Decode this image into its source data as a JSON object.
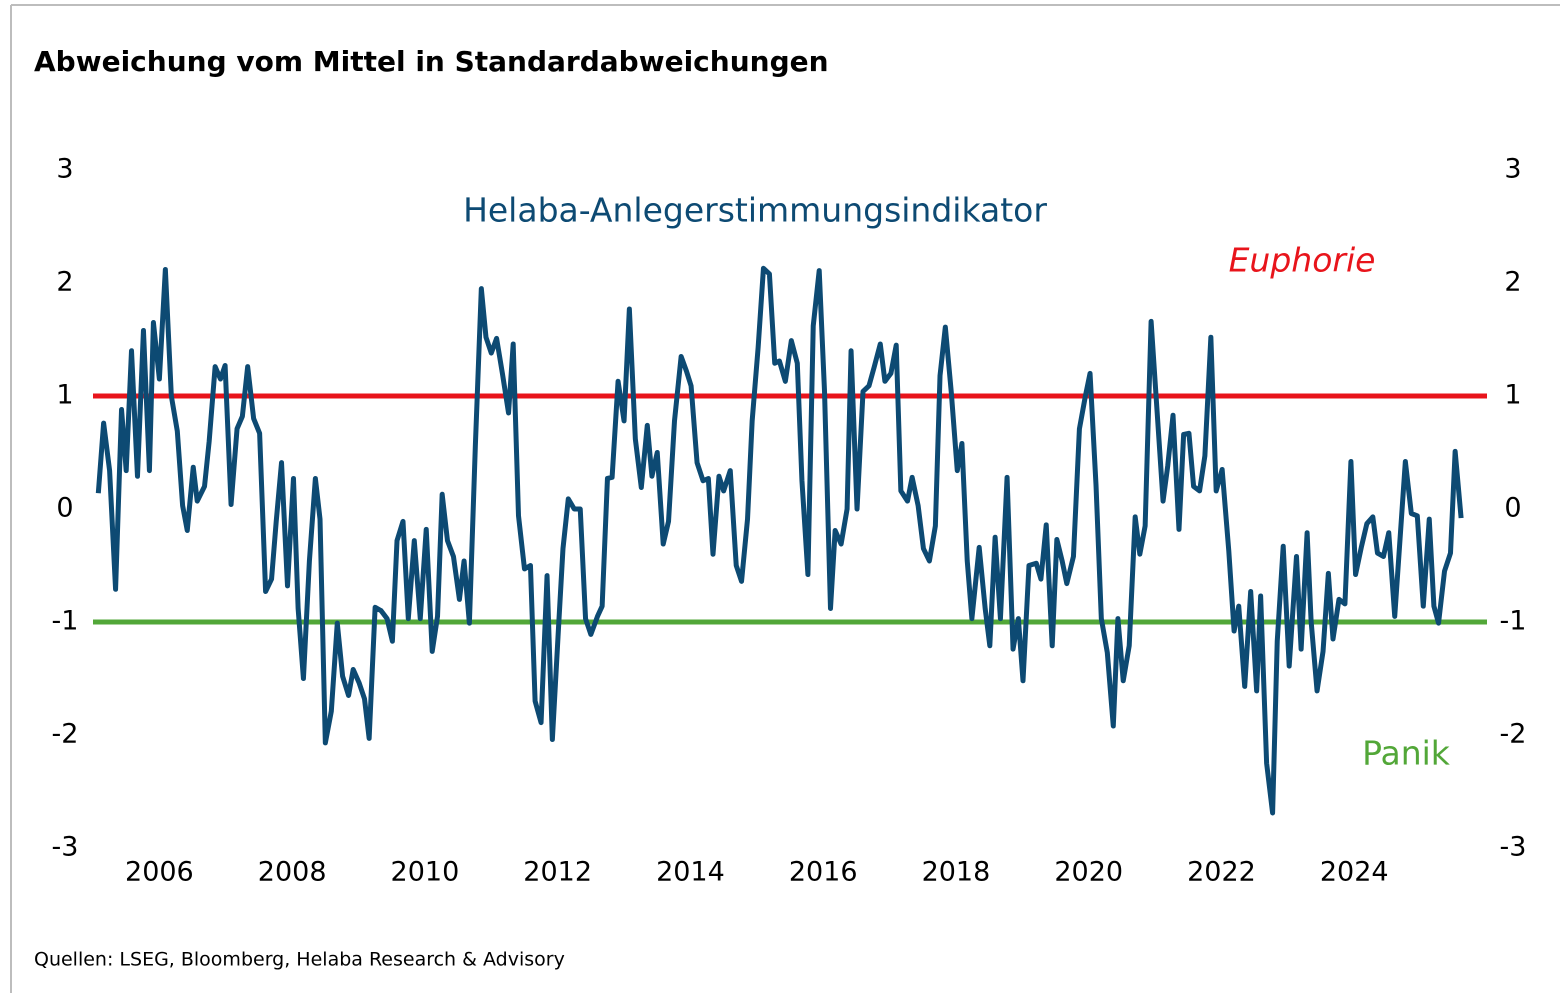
{
  "chart_data": {
    "type": "line",
    "title": "Abweichung vom Mittel in Standardabweichungen",
    "source": "Quellen: LSEG, Bloomberg, Helaba Research & Advisory",
    "xlim": [
      2005,
      2026
    ],
    "xticks": [
      2006,
      2008,
      2010,
      2012,
      2014,
      2016,
      2018,
      2020,
      2022,
      2024
    ],
    "ylim": [
      -3,
      3
    ],
    "yticks": [
      -3,
      -2,
      -1,
      0,
      1,
      2,
      3
    ],
    "y2lim": [
      -3,
      3
    ],
    "y2ticks": [
      -3,
      -2,
      -1,
      0,
      1,
      2,
      3
    ],
    "hlines": [
      {
        "value": 1,
        "color": "#e8141b",
        "label": "Euphorie"
      },
      {
        "value": -1,
        "color": "#52a738",
        "label": "Panik"
      }
    ],
    "x": [
      2005.08,
      2005.16,
      2005.25,
      2005.34,
      2005.43,
      2005.5,
      2005.58,
      2005.67,
      2005.76,
      2005.85,
      2005.91,
      2006.0,
      2006.09,
      2006.18,
      2006.27,
      2006.35,
      2006.42,
      2006.51,
      2006.57,
      2006.68,
      2006.75,
      2006.84,
      2006.92,
      2006.99,
      2007.08,
      2007.17,
      2007.25,
      2007.33,
      2007.42,
      2007.51,
      2007.6,
      2007.69,
      2007.76,
      2007.84,
      2007.93,
      2008.02,
      2008.09,
      2008.17,
      2008.26,
      2008.35,
      2008.42,
      2008.5,
      2008.59,
      2008.68,
      2008.76,
      2008.85,
      2008.92,
      2009.01,
      2009.09,
      2009.16,
      2009.25,
      2009.34,
      2009.43,
      2009.51,
      2009.58,
      2009.67,
      2009.75,
      2009.84,
      2009.93,
      2010.02,
      2010.11,
      2010.19,
      2010.26,
      2010.34,
      2010.43,
      2010.52,
      2010.59,
      2010.67,
      2010.76,
      2010.85,
      2010.92,
      2011.0,
      2011.08,
      2011.17,
      2011.26,
      2011.33,
      2011.41,
      2011.5,
      2011.59,
      2011.66,
      2011.75,
      2011.84,
      2011.92,
      2012.01,
      2012.08,
      2012.16,
      2012.25,
      2012.34,
      2012.42,
      2012.5,
      2012.6,
      2012.67,
      2012.75,
      2012.82,
      2012.91,
      2013.0,
      2013.08,
      2013.17,
      2013.26,
      2013.35,
      2013.42,
      2013.5,
      2013.59,
      2013.67,
      2013.76,
      2013.86,
      2013.94,
      2014.01,
      2014.1,
      2014.19,
      2014.27,
      2014.34,
      2014.43,
      2014.5,
      2014.6,
      2014.69,
      2014.77,
      2014.86,
      2014.93,
      2015.02,
      2015.1,
      2015.19,
      2015.27,
      2015.34,
      2015.43,
      2015.52,
      2015.61,
      2015.68,
      2015.77,
      2015.85,
      2015.94,
      2016.02,
      2016.11,
      2016.18,
      2016.27,
      2016.36,
      2016.42,
      2016.51,
      2016.6,
      2016.69,
      2016.77,
      2016.86,
      2016.93,
      2017.02,
      2017.1,
      2017.17,
      2017.27,
      2017.34,
      2017.43,
      2017.51,
      2017.6,
      2017.69,
      2017.76,
      2017.84,
      2017.93,
      2018.02,
      2018.09,
      2018.17,
      2018.24,
      2018.35,
      2018.44,
      2018.51,
      2018.59,
      2018.67,
      2018.77,
      2018.86,
      2018.94,
      2019.01,
      2019.1,
      2019.21,
      2019.28,
      2019.36,
      2019.45,
      2019.52,
      2019.6,
      2019.67,
      2019.77,
      2019.86,
      2019.95,
      2020.02,
      2020.11,
      2020.19,
      2020.28,
      2020.37,
      2020.44,
      2020.52,
      2020.61,
      2020.7,
      2020.77,
      2020.85,
      2020.94,
      2021.01,
      2021.12,
      2021.19,
      2021.27,
      2021.36,
      2021.43,
      2021.51,
      2021.58,
      2021.67,
      2021.75,
      2021.84,
      2021.92,
      2022.01,
      2022.11,
      2022.19,
      2022.26,
      2022.35,
      2022.44,
      2022.53,
      2022.59,
      2022.68,
      2022.77,
      2022.84,
      2022.93,
      2023.02,
      2023.13,
      2023.2,
      2023.29,
      2023.35,
      2023.44,
      2023.53,
      2023.61,
      2023.68,
      2023.77,
      2023.86,
      2023.95,
      2024.02,
      2024.11,
      2024.19,
      2024.28,
      2024.35,
      2024.44,
      2024.52,
      2024.61,
      2024.7,
      2024.77,
      2024.86,
      2024.95,
      2025.04,
      2025.13,
      2025.2,
      2025.27,
      2025.36,
      2025.45,
      2025.52,
      2025.61
    ],
    "series": [
      {
        "name": "Helaba-Anlegerstimmungsindikator",
        "color": "#0d4a73",
        "values": [
          0.14,
          0.76,
          0.34,
          -0.71,
          0.88,
          0.34,
          1.4,
          0.29,
          1.58,
          0.34,
          1.65,
          1.15,
          2.12,
          1.0,
          0.69,
          0.03,
          -0.19,
          0.37,
          0.07,
          0.2,
          0.6,
          1.26,
          1.15,
          1.27,
          0.04,
          0.71,
          0.82,
          1.26,
          0.8,
          0.67,
          -0.73,
          -0.62,
          -0.11,
          0.41,
          -0.68,
          0.27,
          -0.88,
          -1.5,
          -0.46,
          0.27,
          -0.09,
          -2.07,
          -1.79,
          -1.01,
          -1.48,
          -1.65,
          -1.42,
          -1.54,
          -1.68,
          -2.03,
          -0.87,
          -0.9,
          -0.97,
          -1.17,
          -0.28,
          -0.11,
          -0.97,
          -0.28,
          -0.97,
          -0.18,
          -1.26,
          -0.95,
          0.13,
          -0.28,
          -0.42,
          -0.8,
          -0.46,
          -1.01,
          0.56,
          1.95,
          1.52,
          1.38,
          1.51,
          1.19,
          0.85,
          1.46,
          -0.06,
          -0.53,
          -0.5,
          -1.7,
          -1.89,
          -0.59,
          -2.04,
          -1.08,
          -0.35,
          0.09,
          0,
          0,
          -0.97,
          -1.11,
          -0.95,
          -0.86,
          0.27,
          0.28,
          1.13,
          0.78,
          1.77,
          0.62,
          0.19,
          0.74,
          0.29,
          0.5,
          -0.31,
          -0.11,
          0.78,
          1.35,
          1.22,
          1.09,
          0.41,
          0.25,
          0.27,
          -0.4,
          0.29,
          0.16,
          0.34,
          -0.5,
          -0.64,
          -0.09,
          0.78,
          1.43,
          2.13,
          2.08,
          1.29,
          1.31,
          1.13,
          1.49,
          1.29,
          0.25,
          -0.58,
          1.62,
          2.11,
          1.04,
          -0.88,
          -0.19,
          -0.31,
          0,
          1.4,
          0,
          1.04,
          1.09,
          1.26,
          1.46,
          1.13,
          1.2,
          1.45,
          0.16,
          0.07,
          0.28,
          0.03,
          -0.35,
          -0.46,
          -0.15,
          1.18,
          1.61,
          1.03,
          0.34,
          0.58,
          -0.46,
          -0.97,
          -0.34,
          -0.88,
          -1.21,
          -0.25,
          -0.97,
          0.28,
          -1.24,
          -0.97,
          -1.52,
          -0.5,
          -0.48,
          -0.62,
          -0.14,
          -1.21,
          -0.27,
          -0.46,
          -0.66,
          -0.42,
          0.71,
          1.0,
          1.2,
          0.21,
          -0.97,
          -1.27,
          -1.92,
          -0.97,
          -1.52,
          -1.21,
          -0.07,
          -0.4,
          -0.15,
          1.66,
          1.04,
          0.07,
          0.38,
          0.83,
          -0.18,
          0.66,
          0.67,
          0.2,
          0.16,
          0.47,
          1.52,
          0.16,
          0.35,
          -0.37,
          -1.08,
          -0.86,
          -1.57,
          -0.73,
          -1.61,
          -0.77,
          -2.25,
          -2.69,
          -1.17,
          -0.33,
          -1.39,
          -0.42,
          -1.24,
          -0.21,
          -0.99,
          -1.61,
          -1.26,
          -0.57,
          -1.15,
          -0.8,
          -0.84,
          0.42,
          -0.58,
          -0.33,
          -0.13,
          -0.07,
          -0.39,
          -0.42,
          -0.21,
          -0.95,
          -0.18,
          0.42,
          -0.04,
          -0.06,
          -0.86,
          -0.09,
          -0.86,
          -1.01,
          -0.55,
          -0.39,
          0.51,
          -0.08
        ]
      }
    ]
  }
}
